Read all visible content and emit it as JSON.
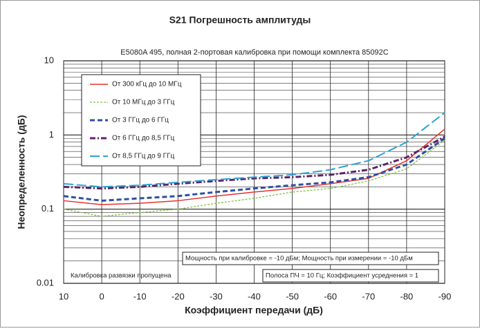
{
  "chart_data": {
    "type": "line",
    "title": "S21 Погрешность амплитуды",
    "subtitle": "E5080A 495, полная 2-портовая калибровка при помощи комплекта 85092C",
    "x_label": "Коэффициент передачи (дБ)",
    "y_label": "Неопределенность (дБ)",
    "x": [
      10,
      0,
      -10,
      -20,
      -30,
      -40,
      -50,
      -60,
      -70,
      -80,
      -90
    ],
    "xlim": [
      10,
      -90
    ],
    "xticks": [
      10,
      0,
      -10,
      -20,
      -30,
      -40,
      -50,
      -60,
      -70,
      -80,
      -90
    ],
    "ylim": [
      0.01,
      10
    ],
    "yticks": [
      10,
      1,
      0.1,
      0.01
    ],
    "log_y": true,
    "grid": true,
    "legend": "upper left",
    "series": [
      {
        "name": "От 300 кГц до 10 МГц",
        "color": "#e8302a",
        "line_style": "solid",
        "values": [
          0.13,
          0.115,
          0.12,
          0.13,
          0.15,
          0.17,
          0.19,
          0.22,
          0.26,
          0.45,
          1.2
        ]
      },
      {
        "name": "От 10 МГц до 3 ГГц",
        "color": "#7dc242",
        "line_style": "dotted",
        "values": [
          0.1,
          0.08,
          0.09,
          0.1,
          0.12,
          0.14,
          0.17,
          0.19,
          0.24,
          0.35,
          0.85
        ]
      },
      {
        "name": "От 3 ГГц до 6 ГГц",
        "color": "#2e4fa3",
        "line_style": "dashed",
        "values": [
          0.15,
          0.13,
          0.14,
          0.15,
          0.17,
          0.19,
          0.21,
          0.23,
          0.27,
          0.4,
          0.9
        ]
      },
      {
        "name": "От 6 ГГц до 8,5 ГГц",
        "color": "#5b2466",
        "line_style": "dashdot",
        "values": [
          0.2,
          0.19,
          0.2,
          0.22,
          0.24,
          0.26,
          0.27,
          0.29,
          0.34,
          0.5,
          0.95
        ]
      },
      {
        "name": "От 8,5 ГГц до 9 ГГц",
        "color": "#2aa3d6",
        "line_style": "longdash",
        "values": [
          0.22,
          0.2,
          0.21,
          0.23,
          0.25,
          0.27,
          0.29,
          0.34,
          0.45,
          0.8,
          2.0
        ]
      }
    ],
    "annotations": [
      "Калибровка развязки пропущена",
      "Мощность при калибровке = -10 дБм; Мощность при измерении = -10 дБм",
      "Полоса ПЧ = 10 Гц; Коэффициент усреднения = 1"
    ]
  }
}
